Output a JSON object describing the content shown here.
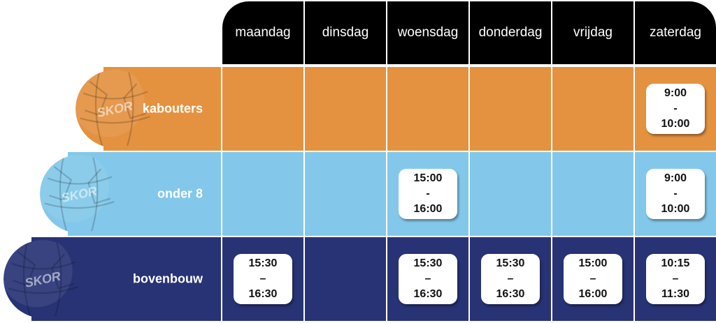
{
  "days": [
    "maandag",
    "dinsdag",
    "woensdag",
    "donderdag",
    "vrijdag",
    "zaterdag"
  ],
  "colors": {
    "header": "#000000",
    "separator": "#ffffff",
    "card": "#ffffff"
  },
  "rows": [
    {
      "label": "kabouters",
      "color": "#e49240",
      "ball_icon": "orange-handball-icon",
      "ball_text": "SKOR",
      "slots": [
        null,
        null,
        null,
        null,
        null,
        {
          "start": "9:00",
          "sep": "-",
          "end": "10:00"
        }
      ]
    },
    {
      "label": "onder 8",
      "color": "#83c8ea",
      "ball_icon": "light-blue-handball-icon",
      "ball_text": "SKOR",
      "slots": [
        null,
        null,
        {
          "start": "15:00",
          "sep": "-",
          "end": "16:00"
        },
        null,
        null,
        {
          "start": "9:00",
          "sep": "-",
          "end": "10:00"
        }
      ]
    },
    {
      "label": "bovenbouw",
      "color": "#283376",
      "ball_icon": "navy-handball-icon",
      "ball_text": "SKOR",
      "slots": [
        {
          "start": "15:30",
          "sep": "–",
          "end": "16:30"
        },
        null,
        {
          "start": "15:30",
          "sep": "–",
          "end": "16:30"
        },
        {
          "start": "15:30",
          "sep": "–",
          "end": "16:30"
        },
        {
          "start": "15:00",
          "sep": "–",
          "end": "16:00"
        },
        {
          "start": "10:15",
          "sep": "–",
          "end": "11:30"
        }
      ]
    }
  ]
}
